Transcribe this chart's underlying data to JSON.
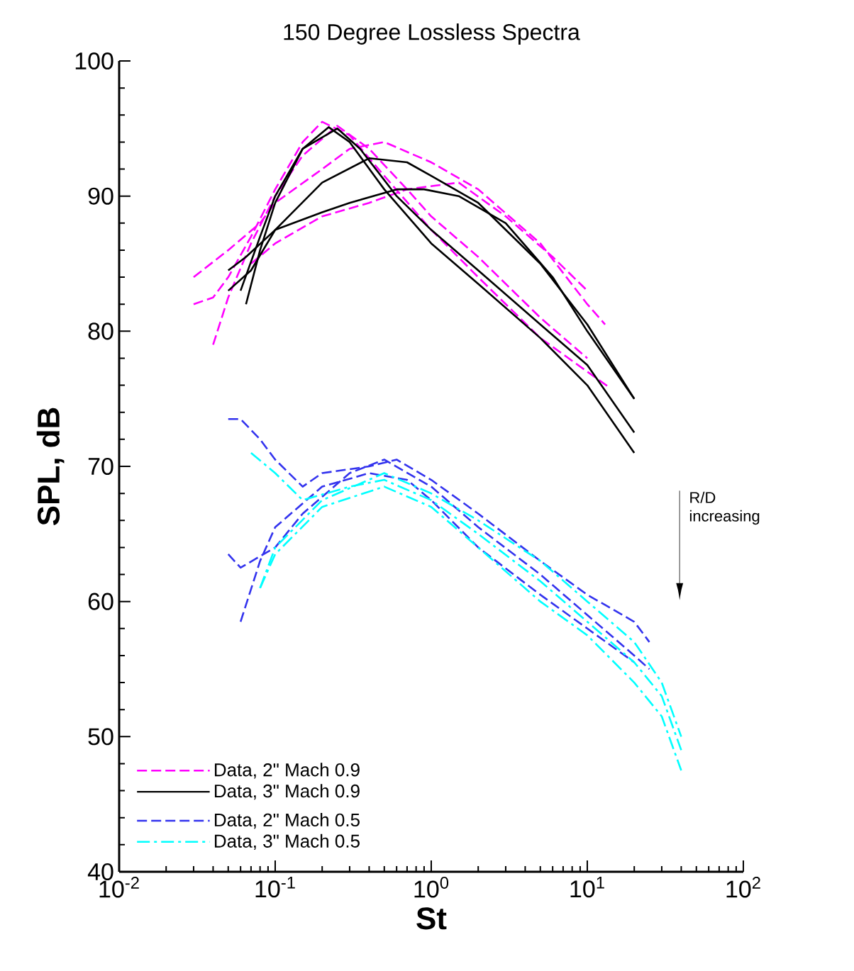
{
  "chart_data": {
    "type": "line",
    "title": "150 Degree Lossless Spectra",
    "xlabel": "St",
    "ylabel": "SPL, dB",
    "log": "x",
    "xlim": [
      0.01,
      100
    ],
    "ylim": [
      40,
      100
    ],
    "xticks": [
      {
        "value": 0.01,
        "label": "10$^{-2}$"
      },
      {
        "value": 0.1,
        "label": "10$^{-1}$"
      },
      {
        "value": 1,
        "label": "10$^{0}$"
      },
      {
        "value": 10,
        "label": "10$^{1}$"
      },
      {
        "value": 100,
        "label": "10$^{2}$"
      }
    ],
    "yticks": [
      40,
      50,
      60,
      70,
      80,
      90,
      100
    ],
    "legend": "bottom left",
    "grid": false,
    "marker": "none",
    "annotations": [
      "R/D increasing"
    ],
    "series": [
      {
        "name": "Data, 2\" Mach 0.9",
        "color": "#ff00ff",
        "line_style": "dashed",
        "x": [
          0.03,
          0.04,
          0.05,
          0.07,
          0.1,
          0.15,
          0.2,
          0.3,
          0.5,
          1,
          2,
          5,
          14
        ],
        "values": [
          82,
          82.5,
          84,
          87,
          90.5,
          94,
          95.5,
          94.5,
          91.5,
          87.5,
          84,
          79.5,
          75.8
        ]
      },
      {
        "color": "#ff00ff",
        "line_style": "dashed",
        "x": [
          0.04,
          0.05,
          0.07,
          0.1,
          0.15,
          0.25,
          0.4,
          0.7,
          1,
          2,
          5,
          10
        ],
        "values": [
          79,
          82.5,
          86.5,
          90,
          93,
          95.2,
          93.5,
          90.5,
          88.5,
          85.5,
          81,
          78
        ]
      },
      {
        "color": "#ff00ff",
        "line_style": "dashed",
        "x": [
          0.03,
          0.05,
          0.08,
          0.1,
          0.2,
          0.3,
          0.5,
          1,
          2,
          5,
          10,
          13
        ],
        "values": [
          84,
          86,
          88,
          89.5,
          92,
          93.5,
          94,
          92.5,
          90.5,
          86.5,
          82,
          80.5
        ]
      },
      {
        "color": "#ff00ff",
        "line_style": "dashed",
        "x": [
          0.07,
          0.1,
          0.2,
          0.4,
          0.7,
          1.5,
          3,
          6,
          10
        ],
        "values": [
          85,
          86.5,
          88.5,
          89.5,
          90.5,
          91,
          88.5,
          85.5,
          83
        ]
      },
      {
        "name": "Data, 3\" Mach 0.9",
        "color": "#000000",
        "line_style": "solid",
        "x": [
          0.06,
          0.08,
          0.1,
          0.15,
          0.22,
          0.3,
          0.5,
          1,
          2,
          5,
          10,
          20
        ],
        "values": [
          83,
          87,
          90,
          93.5,
          95.1,
          94,
          90.5,
          86.5,
          83.5,
          79.5,
          76,
          71
        ]
      },
      {
        "color": "#000000",
        "line_style": "solid",
        "x": [
          0.065,
          0.08,
          0.1,
          0.15,
          0.25,
          0.35,
          0.6,
          1,
          2,
          5,
          10,
          20
        ],
        "values": [
          82,
          86,
          89.5,
          93.5,
          95,
          93.5,
          90,
          87.5,
          84.5,
          80.5,
          77.5,
          72.5
        ]
      },
      {
        "color": "#000000",
        "line_style": "solid",
        "x": [
          0.05,
          0.07,
          0.1,
          0.2,
          0.4,
          0.7,
          1,
          2,
          5,
          10,
          20
        ],
        "values": [
          83,
          84.5,
          87.5,
          91,
          92.8,
          92.5,
          91.5,
          89.5,
          85,
          80.5,
          75
        ]
      },
      {
        "color": "#000000",
        "line_style": "solid",
        "x": [
          0.05,
          0.065,
          0.1,
          0.2,
          0.3,
          0.6,
          0.9,
          1.5,
          3,
          6,
          10,
          20
        ],
        "values": [
          84.5,
          85.5,
          87.5,
          88.8,
          89.5,
          90.5,
          90.5,
          90,
          88,
          84,
          80,
          75
        ]
      },
      {
        "name": "Data, 2\" Mach 0.5",
        "color": "#3333ee",
        "line_style": "dashed",
        "x": [
          0.05,
          0.06,
          0.08,
          0.1,
          0.15,
          0.2,
          0.4,
          0.6,
          1,
          2,
          5,
          10,
          20,
          25
        ],
        "values": [
          73.5,
          73.5,
          72,
          70.5,
          68.5,
          69.5,
          70,
          70.5,
          69,
          66.5,
          63,
          60.5,
          58.5,
          57
        ]
      },
      {
        "color": "#3333ee",
        "line_style": "dashed",
        "x": [
          0.05,
          0.06,
          0.1,
          0.15,
          0.3,
          0.5,
          1,
          2,
          5,
          10,
          20,
          25
        ],
        "values": [
          63.5,
          62.5,
          64,
          66.5,
          69.5,
          70.5,
          68.5,
          65.5,
          62,
          59,
          56,
          55
        ]
      },
      {
        "color": "#3333ee",
        "line_style": "dashed",
        "x": [
          0.06,
          0.08,
          0.1,
          0.2,
          0.4,
          0.7,
          1,
          2,
          5,
          10,
          20
        ],
        "values": [
          58.5,
          63,
          65.5,
          68.5,
          69.5,
          69,
          67.5,
          64,
          60.5,
          58,
          55.5
        ]
      },
      {
        "name": "Data, 3\" Mach 0.5",
        "color": "#00ffff",
        "line_style": "dashdot",
        "x": [
          0.07,
          0.1,
          0.15,
          0.3,
          0.5,
          1,
          2,
          5,
          10,
          20,
          30,
          40
        ],
        "values": [
          71,
          69.5,
          67.5,
          68.5,
          69,
          67.5,
          65,
          61.5,
          58.5,
          55.5,
          53,
          49
        ]
      },
      {
        "color": "#00ffff",
        "line_style": "dashdot",
        "x": [
          0.08,
          0.1,
          0.2,
          0.5,
          1,
          2,
          5,
          10,
          20,
          30,
          40
        ],
        "values": [
          61,
          64,
          67.5,
          69.5,
          68,
          66,
          63,
          60,
          57,
          54,
          50
        ]
      },
      {
        "color": "#00ffff",
        "line_style": "dashdot",
        "x": [
          0.08,
          0.1,
          0.2,
          0.5,
          1,
          2,
          5,
          10,
          20,
          30,
          40
        ],
        "values": [
          61,
          63.5,
          67,
          68.5,
          67,
          64,
          60,
          57.5,
          54,
          51.5,
          47.5
        ]
      }
    ]
  }
}
